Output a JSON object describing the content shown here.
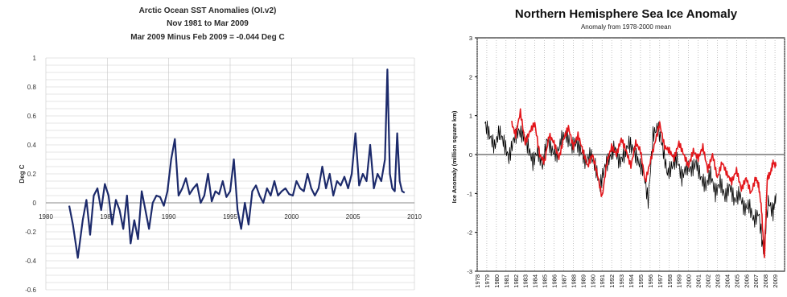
{
  "chart_data": [
    {
      "type": "line",
      "title": "Arctic Ocean SST Anomalies (OI.v2)",
      "subtitle": "Nov 1981 to Mar 2009",
      "annotation": "Mar 2009 Minus Feb 2009 = -0.044 Deg C",
      "xlabel": "",
      "ylabel": "Deg C",
      "xlim": [
        1980,
        2010
      ],
      "ylim": [
        -0.6,
        1.0
      ],
      "x_ticks": [
        "1980",
        "1985",
        "1990",
        "1995",
        "2000",
        "2005",
        "2010"
      ],
      "y_ticks": [
        "1",
        "0.8",
        "0.6",
        "0.4",
        "0.2",
        "0",
        "-0.2",
        "-0.4",
        "-0.6"
      ],
      "grid": true,
      "series": [
        {
          "color": "#1c2a6b",
          "x": [
            1981.9,
            1982.2,
            1982.6,
            1983.0,
            1983.3,
            1983.6,
            1983.9,
            1984.2,
            1984.5,
            1984.8,
            1985.1,
            1985.4,
            1985.7,
            1986.0,
            1986.3,
            1986.6,
            1986.9,
            1987.2,
            1987.5,
            1987.8,
            1988.1,
            1988.4,
            1988.7,
            1989.0,
            1989.3,
            1989.6,
            1989.9,
            1990.2,
            1990.5,
            1990.8,
            1991.1,
            1991.4,
            1991.7,
            1992.0,
            1992.3,
            1992.6,
            1992.9,
            1993.2,
            1993.5,
            1993.8,
            1994.1,
            1994.4,
            1994.7,
            1995.0,
            1995.3,
            1995.6,
            1995.9,
            1996.2,
            1996.5,
            1996.8,
            1997.1,
            1997.4,
            1997.7,
            1998.0,
            1998.3,
            1998.6,
            1998.9,
            1999.2,
            1999.5,
            1999.8,
            2000.1,
            2000.4,
            2000.7,
            2001.0,
            2001.3,
            2001.6,
            2001.9,
            2002.2,
            2002.5,
            2002.8,
            2003.1,
            2003.4,
            2003.7,
            2004.0,
            2004.3,
            2004.6,
            2004.9,
            2005.2,
            2005.5,
            2005.8,
            2006.1,
            2006.4,
            2006.7,
            2007.0,
            2007.3,
            2007.6,
            2007.8,
            2008.0,
            2008.2,
            2008.4,
            2008.6,
            2008.8,
            2009.0,
            2009.2
          ],
          "values": [
            -0.02,
            -0.15,
            -0.38,
            -0.12,
            0.02,
            -0.22,
            0.05,
            0.1,
            -0.05,
            0.13,
            0.05,
            -0.15,
            0.02,
            -0.05,
            -0.18,
            0.05,
            -0.28,
            -0.12,
            -0.25,
            0.08,
            -0.05,
            -0.18,
            0.0,
            0.05,
            0.04,
            -0.02,
            0.08,
            0.3,
            0.44,
            0.05,
            0.1,
            0.17,
            0.06,
            0.1,
            0.13,
            0.0,
            0.05,
            0.2,
            0.01,
            0.08,
            0.06,
            0.15,
            0.04,
            0.08,
            0.3,
            -0.05,
            -0.18,
            0.0,
            -0.15,
            0.08,
            0.12,
            0.05,
            0.0,
            0.1,
            0.05,
            0.15,
            0.05,
            0.08,
            0.1,
            0.06,
            0.05,
            0.15,
            0.1,
            0.08,
            0.2,
            0.1,
            0.05,
            0.1,
            0.25,
            0.1,
            0.2,
            0.05,
            0.15,
            0.12,
            0.18,
            0.1,
            0.2,
            0.48,
            0.12,
            0.2,
            0.15,
            0.4,
            0.1,
            0.2,
            0.15,
            0.3,
            0.92,
            0.2,
            0.1,
            0.08,
            0.48,
            0.15,
            0.08,
            0.07
          ]
        }
      ]
    },
    {
      "type": "line",
      "title": "Northern Hemisphere Sea Ice Anomaly",
      "subtitle": "Anomaly from 1978-2000 mean",
      "xlabel": "",
      "ylabel": "Ice Anomaly (million square km)",
      "xlim": [
        1978,
        2010
      ],
      "ylim": [
        -3,
        3
      ],
      "y_ticks": [
        "3",
        "2",
        "1",
        "0",
        "-1",
        "-2",
        "-3"
      ],
      "x_ticks": [
        "1978",
        "1979",
        "1980",
        "1981",
        "1982",
        "1983",
        "1984",
        "1985",
        "1986",
        "1987",
        "1988",
        "1989",
        "1990",
        "1991",
        "1992",
        "1993",
        "1994",
        "1995",
        "1996",
        "1997",
        "1998",
        "1999",
        "2000",
        "2001",
        "2002",
        "2003",
        "2004",
        "2005",
        "2006",
        "2007",
        "2008",
        "2009"
      ],
      "grid": true,
      "series": [
        {
          "color": "#000000",
          "x": [
            1978.8,
            1979.3,
            1979.8,
            1980.3,
            1980.8,
            1981.3,
            1981.8,
            1982.3,
            1982.8,
            1983.3,
            1983.8,
            1984.3,
            1984.8,
            1985.3,
            1985.8,
            1986.3,
            1986.8,
            1987.3,
            1987.8,
            1988.3,
            1988.8,
            1989.3,
            1989.8,
            1990.3,
            1990.8,
            1991.3,
            1991.8,
            1992.3,
            1992.8,
            1993.3,
            1993.8,
            1994.3,
            1994.8,
            1995.3,
            1995.8,
            1996.3,
            1996.8,
            1997.3,
            1997.8,
            1998.3,
            1998.8,
            1999.3,
            1999.8,
            2000.3,
            2000.8,
            2001.3,
            2001.8,
            2002.3,
            2002.8,
            2003.3,
            2003.8,
            2004.3,
            2004.8,
            2005.3,
            2005.8,
            2006.3,
            2006.8,
            2007.3,
            2007.8,
            2008.3,
            2008.8,
            2009.1
          ],
          "values": [
            0.8,
            0.5,
            0.2,
            0.6,
            0.3,
            -0.1,
            0.4,
            0.6,
            0.5,
            0.2,
            -0.2,
            0.1,
            -0.3,
            0.4,
            0.1,
            0.0,
            0.4,
            0.5,
            0.2,
            0.3,
            0.1,
            -0.2,
            0.0,
            -0.3,
            -0.8,
            -0.3,
            -0.1,
            0.2,
            -0.2,
            0.0,
            0.3,
            0.1,
            -0.2,
            -0.4,
            -1.2,
            0.5,
            0.7,
            0.2,
            -0.5,
            -0.3,
            -0.1,
            -0.6,
            -0.3,
            -0.4,
            -0.2,
            -0.6,
            -0.8,
            -0.5,
            -1.0,
            -0.7,
            -1.1,
            -0.8,
            -1.2,
            -1.0,
            -1.4,
            -1.3,
            -1.7,
            -1.5,
            -2.5,
            -1.2,
            -1.5,
            -1.0
          ]
        },
        {
          "color": "#e3161b",
          "x": [
            1981.6,
            1982.0,
            1982.5,
            1983.0,
            1983.5,
            1984.0,
            1984.5,
            1985.0,
            1985.5,
            1986.0,
            1986.5,
            1987.0,
            1987.5,
            1988.0,
            1988.5,
            1989.0,
            1989.5,
            1990.0,
            1990.5,
            1991.0,
            1991.5,
            1992.0,
            1992.5,
            1993.0,
            1993.5,
            1994.0,
            1994.5,
            1995.0,
            1995.5,
            1996.0,
            1996.5,
            1997.0,
            1997.5,
            1998.0,
            1998.5,
            1999.0,
            1999.5,
            2000.0,
            2000.5,
            2001.0,
            2001.5,
            2002.0,
            2002.5,
            2003.0,
            2003.5,
            2004.0,
            2004.5,
            2005.0,
            2005.5,
            2006.0,
            2006.5,
            2007.0,
            2007.3,
            2007.6,
            2007.9,
            2008.2,
            2008.5,
            2008.8,
            2009.1
          ],
          "values": [
            0.8,
            0.5,
            1.1,
            0.3,
            0.6,
            0.8,
            0.0,
            -0.2,
            0.5,
            0.3,
            -0.1,
            0.4,
            0.7,
            0.2,
            0.5,
            0.1,
            -0.3,
            0.0,
            -0.5,
            -1.1,
            -0.2,
            0.2,
            0.0,
            0.4,
            0.1,
            -0.3,
            0.3,
            0.1,
            -0.7,
            -0.2,
            0.3,
            0.8,
            0.2,
            0.1,
            -0.1,
            0.3,
            0.0,
            -0.3,
            0.1,
            -0.1,
            0.2,
            -0.4,
            0.0,
            -0.6,
            -0.2,
            -0.5,
            -0.7,
            -0.4,
            -0.9,
            -0.6,
            -1.0,
            -0.6,
            -0.8,
            -1.4,
            -2.7,
            -0.6,
            -0.5,
            -0.2,
            -0.3
          ]
        }
      ]
    }
  ]
}
